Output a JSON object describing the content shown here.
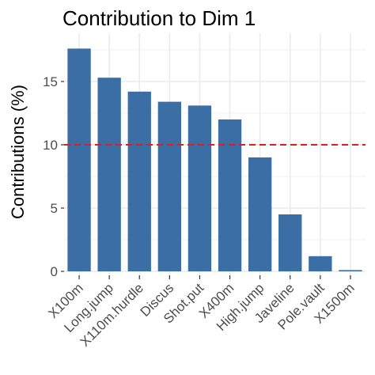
{
  "chart_data": {
    "type": "bar",
    "title": "Contribution to Dim 1",
    "xlabel": "",
    "ylabel": "Contributions (%)",
    "categories": [
      "X100m",
      "Long.jump",
      "X110m.hurdle",
      "Discus",
      "Shot.put",
      "X400m",
      "High.jump",
      "Javeline",
      "Pole.vault",
      "X1500m"
    ],
    "values": [
      17.6,
      15.3,
      14.2,
      13.4,
      13.1,
      12.0,
      9.0,
      4.5,
      1.2,
      0.1
    ],
    "ylim": [
      0,
      18.5
    ],
    "yticks": [
      0,
      5,
      10,
      15
    ],
    "reference_line": {
      "value": 10,
      "style": "dashed",
      "color": "#e41a1c"
    },
    "bar_color": "#3a6ea5",
    "grid": true,
    "grid_color": "#ebebeb",
    "background": "#ffffff"
  }
}
